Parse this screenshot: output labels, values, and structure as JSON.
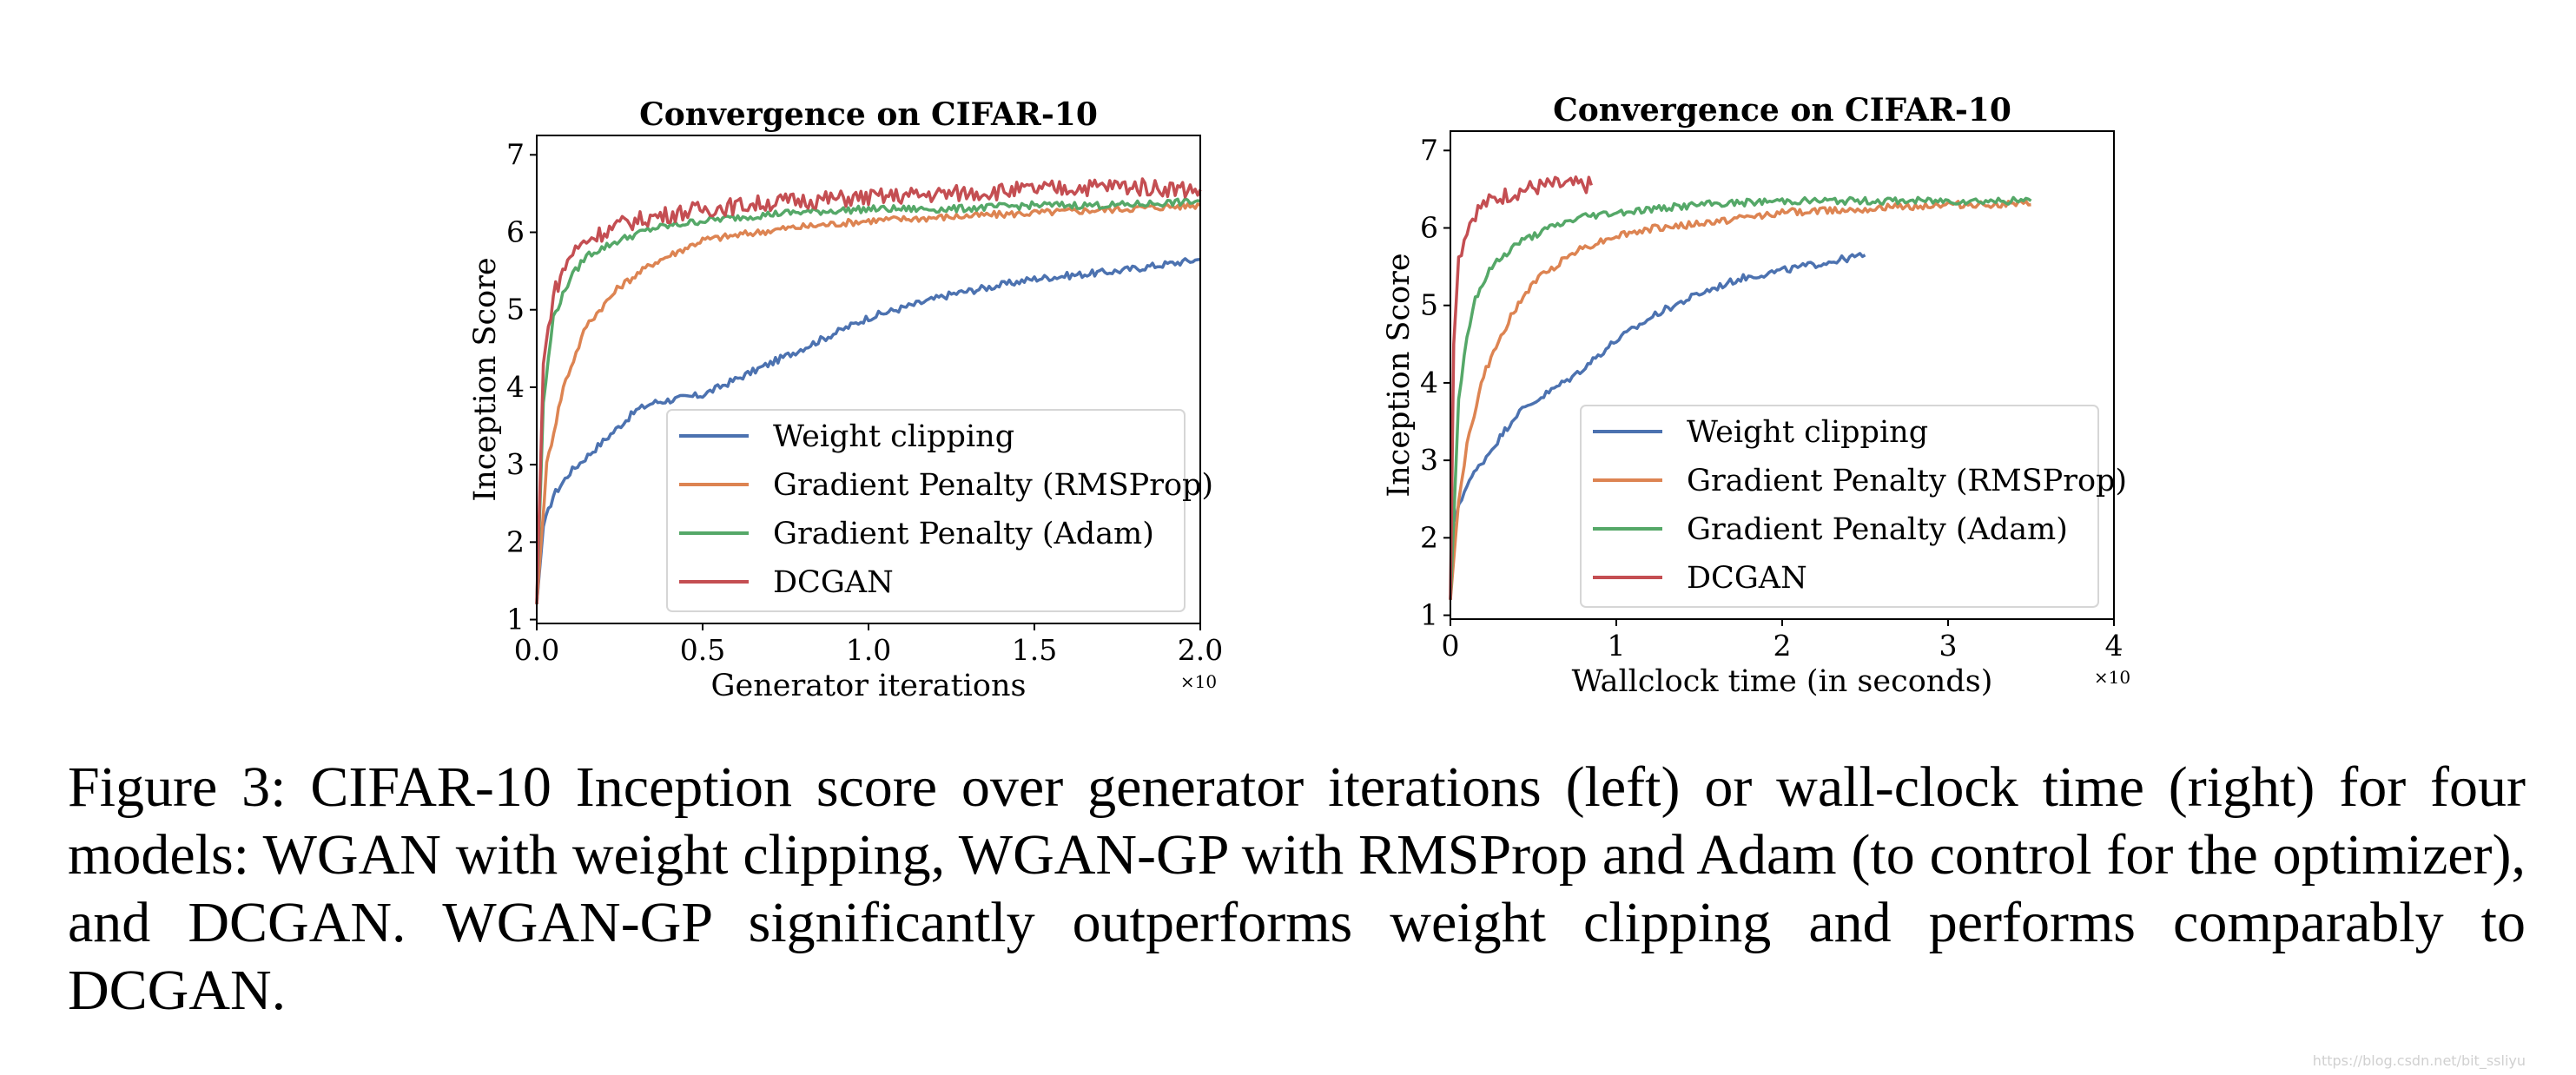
{
  "chart_data": [
    {
      "type": "line",
      "title": "Convergence on CIFAR-10",
      "xlabel": "Generator iterations",
      "ylabel": "Inception Score",
      "x_multiplier": "×10",
      "xlim": [
        0,
        2.0
      ],
      "ylim": [
        0.95,
        7.25
      ],
      "xticks": [
        "0.0",
        "0.5",
        "1.0",
        "1.5",
        "2.0"
      ],
      "yticks": [
        "1",
        "2",
        "3",
        "4",
        "5",
        "6",
        "7"
      ],
      "legend_position": "lower-right",
      "series": [
        {
          "name": "Weight clipping",
          "color": "#4c72b0",
          "x": [
            0,
            0.02,
            0.05,
            0.1,
            0.2,
            0.3,
            0.35,
            0.5,
            0.75,
            1.0,
            1.25,
            1.5,
            1.75,
            2.0
          ],
          "y": [
            1.2,
            2.2,
            2.6,
            2.9,
            3.3,
            3.7,
            3.8,
            3.9,
            4.4,
            4.9,
            5.2,
            5.4,
            5.5,
            5.65
          ]
        },
        {
          "name": "Gradient Penalty (RMSProp)",
          "color": "#dd8452",
          "x": [
            0,
            0.03,
            0.08,
            0.15,
            0.25,
            0.35,
            0.5,
            0.75,
            1.0,
            1.25,
            1.5,
            1.75,
            2.0
          ],
          "y": [
            1.2,
            3.0,
            4.0,
            4.8,
            5.3,
            5.6,
            5.9,
            6.05,
            6.15,
            6.2,
            6.25,
            6.3,
            6.35
          ]
        },
        {
          "name": "Gradient Penalty (Adam)",
          "color": "#55a868",
          "x": [
            0,
            0.02,
            0.05,
            0.1,
            0.15,
            0.25,
            0.35,
            0.5,
            0.75,
            1.0,
            1.25,
            1.5,
            1.75,
            2.0
          ],
          "y": [
            1.2,
            3.8,
            4.9,
            5.4,
            5.7,
            5.9,
            6.05,
            6.15,
            6.25,
            6.3,
            6.3,
            6.35,
            6.35,
            6.4
          ]
        },
        {
          "name": "DCGAN",
          "color": "#c44e52",
          "x": [
            0,
            0.02,
            0.05,
            0.1,
            0.15,
            0.25,
            0.35,
            0.5,
            0.75,
            1.0,
            1.25,
            1.5,
            1.75,
            2.0
          ],
          "y": [
            1.2,
            4.3,
            5.2,
            5.7,
            5.9,
            6.1,
            6.2,
            6.3,
            6.4,
            6.45,
            6.5,
            6.55,
            6.6,
            6.55
          ]
        }
      ]
    },
    {
      "type": "line",
      "title": "Convergence on CIFAR-10",
      "xlabel": "Wallclock time (in seconds)",
      "ylabel": "Inception Score",
      "x_multiplier": "×10",
      "xlim": [
        0,
        4
      ],
      "ylim": [
        0.95,
        7.25
      ],
      "xticks": [
        "0",
        "1",
        "2",
        "3",
        "4"
      ],
      "yticks": [
        "1",
        "2",
        "3",
        "4",
        "5",
        "6",
        "7"
      ],
      "legend_position": "lower-right",
      "series": [
        {
          "name": "Weight clipping",
          "color": "#4c72b0",
          "x": [
            0,
            0.02,
            0.1,
            0.2,
            0.3,
            0.4,
            0.5,
            0.75,
            1.0,
            1.25,
            1.5,
            1.75,
            2.0,
            2.25,
            2.5
          ],
          "y": [
            1.2,
            2.2,
            2.7,
            3.0,
            3.3,
            3.6,
            3.75,
            4.1,
            4.55,
            4.9,
            5.15,
            5.35,
            5.45,
            5.55,
            5.65
          ]
        },
        {
          "name": "Gradient Penalty (RMSProp)",
          "color": "#dd8452",
          "x": [
            0,
            0.05,
            0.1,
            0.2,
            0.35,
            0.5,
            0.75,
            1.0,
            1.25,
            1.5,
            2.0,
            2.5,
            3.0,
            3.5
          ],
          "y": [
            1.2,
            2.5,
            3.2,
            4.1,
            4.8,
            5.3,
            5.7,
            5.9,
            6.0,
            6.05,
            6.2,
            6.25,
            6.3,
            6.3
          ]
        },
        {
          "name": "Gradient Penalty (Adam)",
          "color": "#55a868",
          "x": [
            0,
            0.05,
            0.1,
            0.15,
            0.25,
            0.4,
            0.6,
            0.8,
            1.0,
            1.5,
            2.0,
            2.5,
            3.0,
            3.5
          ],
          "y": [
            1.2,
            3.8,
            4.6,
            5.1,
            5.5,
            5.8,
            6.0,
            6.15,
            6.2,
            6.3,
            6.35,
            6.35,
            6.35,
            6.35
          ]
        },
        {
          "name": "DCGAN",
          "color": "#c44e52",
          "x": [
            0,
            0.02,
            0.05,
            0.1,
            0.15,
            0.2,
            0.3,
            0.45,
            0.6,
            0.85
          ],
          "y": [
            1.2,
            4.5,
            5.6,
            6.0,
            6.2,
            6.3,
            6.4,
            6.5,
            6.55,
            6.55
          ]
        }
      ]
    }
  ],
  "caption": {
    "text": "Figure 3:  CIFAR-10 Inception score over generator iterations (left) or wall-clock time (right) for four models: WGAN with weight clipping, WGAN-GP with RMSProp and Adam (to control for the optimizer), and DCGAN. WGAN-GP significantly outperforms weight clipping and performs comparably to DCGAN."
  },
  "watermark": "https://blog.csdn.net/bit_ssliyu"
}
